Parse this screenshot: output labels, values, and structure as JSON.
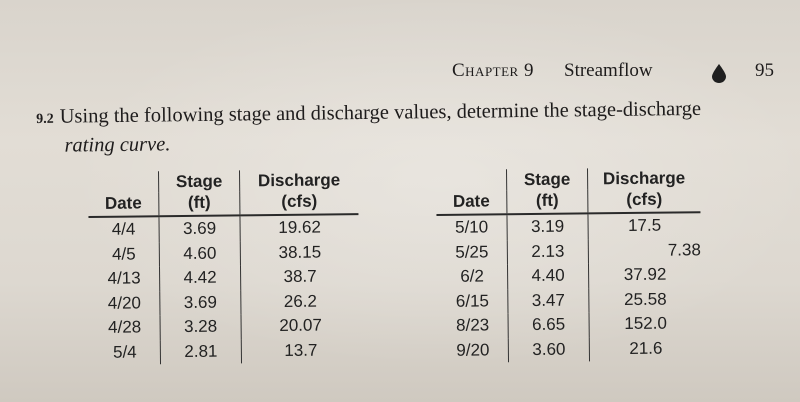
{
  "running_head": {
    "chapter": "Chapter 9",
    "title": "Streamflow",
    "page_number": "95"
  },
  "problem": {
    "number": "9.2",
    "line1": "Using the following stage and discharge values, determine the stage-discharge",
    "line2": "rating curve."
  },
  "table_headers": {
    "date": "Date",
    "stage_line1": "Stage",
    "stage_line2": "(ft)",
    "discharge_line1": "Discharge",
    "discharge_line2": "(cfs)"
  },
  "table_left": [
    {
      "date": "4/4",
      "stage": "3.69",
      "discharge": "19.62"
    },
    {
      "date": "4/5",
      "stage": "4.60",
      "discharge": "38.15"
    },
    {
      "date": "4/13",
      "stage": "4.42",
      "discharge": "38.7"
    },
    {
      "date": "4/20",
      "stage": "3.69",
      "discharge": "26.2"
    },
    {
      "date": "4/28",
      "stage": "3.28",
      "discharge": "20.07"
    },
    {
      "date": "5/4",
      "stage": "2.81",
      "discharge": "13.7"
    }
  ],
  "table_right": [
    {
      "date": "5/10",
      "stage": "3.19",
      "discharge": "17.5"
    },
    {
      "date": "5/25",
      "stage": "2.13",
      "discharge": "7.38"
    },
    {
      "date": "6/2",
      "stage": "4.40",
      "discharge": "37.92"
    },
    {
      "date": "6/15",
      "stage": "3.47",
      "discharge": "25.58"
    },
    {
      "date": "8/23",
      "stage": "6.65",
      "discharge": "152.0"
    },
    {
      "date": "9/20",
      "stage": "3.60",
      "discharge": "21.6"
    }
  ],
  "icons": {
    "running_head_ornament": "water-drop-icon"
  }
}
